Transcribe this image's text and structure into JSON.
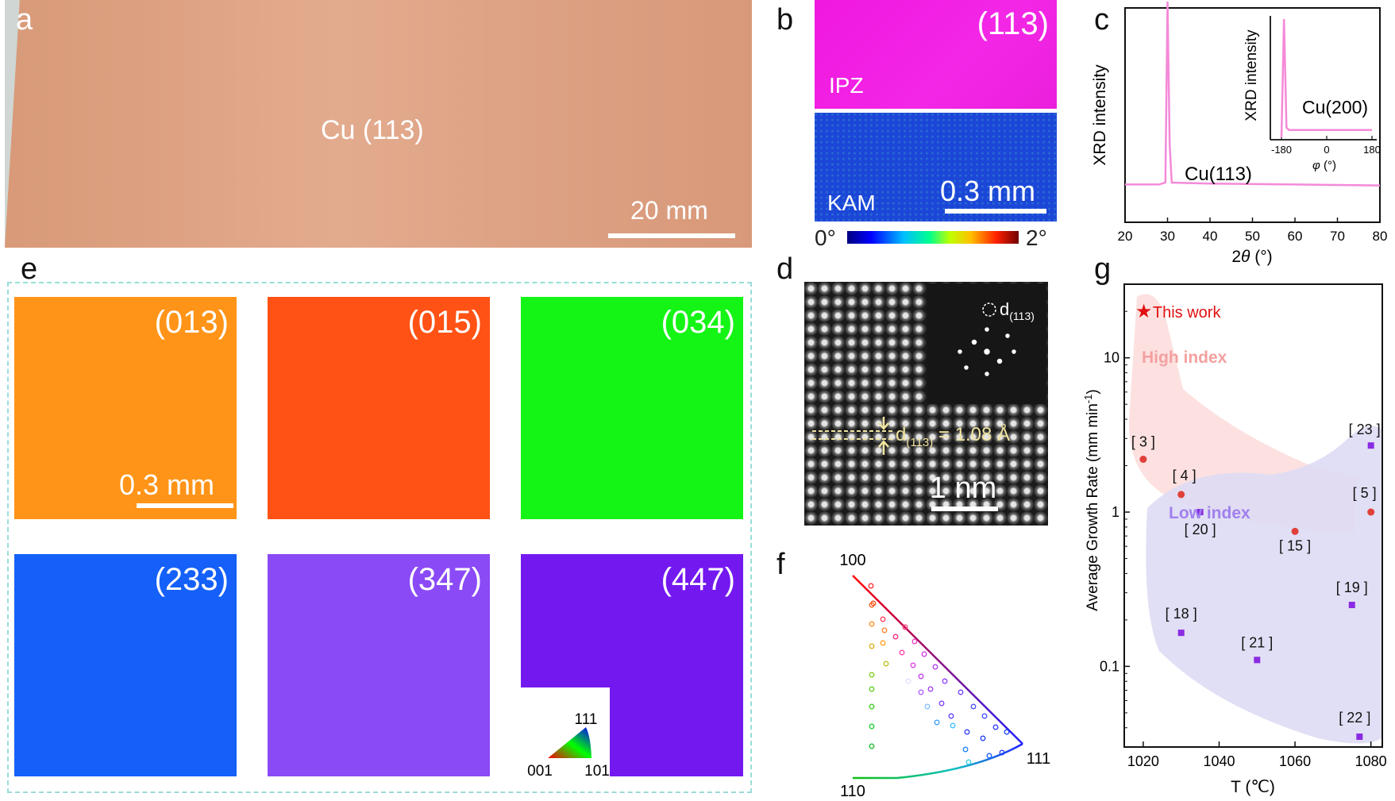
{
  "panel_labels": {
    "a": "a",
    "b": "b",
    "c": "c",
    "d": "d",
    "e": "e",
    "f": "f",
    "g": "g"
  },
  "panel_a": {
    "label": "Cu (113)",
    "scale": "20 mm"
  },
  "panel_b": {
    "ipz_hkl": "(113)",
    "ipz_label": "IPZ",
    "kam_label": "KAM",
    "scale": "0.3 mm",
    "cbar_min": "0°",
    "cbar_max": "2°"
  },
  "panel_c": {
    "ylabel": "XRD intensity",
    "xlabel_pre": "2",
    "xlabel_sym": "θ",
    "xlabel_post": " (°)",
    "xticks": [
      "20",
      "30",
      "40",
      "50",
      "60",
      "70",
      "80"
    ],
    "peak_label": "Cu(113)",
    "inset": {
      "ylabel": "XRD intensity",
      "xticks": [
        "-180",
        "0",
        "180"
      ],
      "xlabel_sym": "φ",
      "xlabel_post": " (°)",
      "label": "Cu(200)"
    }
  },
  "panel_d": {
    "fft_label_main": "d",
    "fft_label_sub": "(113)",
    "d_label_main": "d",
    "d_label_sub": "(113)",
    "d_label_post": " = 1.08 Å",
    "scale": "1 nm"
  },
  "panel_e": {
    "scale": "0.3 mm",
    "samples": [
      {
        "hkl": "(013)",
        "color": "#ff9418"
      },
      {
        "hkl": "(015)",
        "color": "#ff5214"
      },
      {
        "hkl": "(034)",
        "color": "#14f516"
      },
      {
        "hkl": "(233)",
        "color": "#1460f8"
      },
      {
        "hkl": "(347)",
        "color": "#8a4af6"
      },
      {
        "hkl": "(447)",
        "color": "#7418f0"
      }
    ],
    "ipf_key": {
      "top": "111",
      "left": "001",
      "right": "101"
    }
  },
  "panel_f": {
    "corner_100": "100",
    "corner_110": "110",
    "corner_111": "111"
  },
  "panel_g": {
    "ylabel_pre": "Average Growth Rate (mm min",
    "ylabel_sup": "-1",
    "ylabel_post": ")",
    "xlabel": "T (℃)",
    "xticks": [
      "1020",
      "1040",
      "1060",
      "1080"
    ],
    "yticks": [
      "0.1",
      "1",
      "10"
    ],
    "legend": "This work",
    "region_high": "High index",
    "region_low": "Low index"
  },
  "chart_data": [
    {
      "type": "line",
      "xlabel": "2θ (°)",
      "ylabel": "XRD intensity",
      "xlim": [
        20,
        80
      ],
      "series": [
        {
          "x": [
            20,
            28,
            29.5,
            30,
            30.5,
            31,
            40,
            60,
            80
          ],
          "y": [
            0.04,
            0.04,
            0.05,
            1.0,
            0.25,
            0.05,
            0.045,
            0.04,
            0.035
          ]
        }
      ],
      "annotations": [
        "Cu(113)"
      ],
      "inset": {
        "xlabel": "φ (°)",
        "ylabel": "XRD intensity",
        "xlim": [
          -180,
          180
        ],
        "series": [
          {
            "x": [
              -180,
              -170,
              -160,
              -150,
              0,
              180
            ],
            "y": [
              0.02,
              1.0,
              0.1,
              0.08,
              0.08,
              0.08
            ]
          }
        ],
        "annotations": [
          "Cu(200)"
        ]
      }
    },
    {
      "type": "scatter",
      "xlabel": "T (℃)",
      "ylabel": "Average Growth Rate (mm min-1)",
      "xlim": [
        1015,
        1083
      ],
      "ylim": [
        0.03,
        30
      ],
      "yscale": "log",
      "legend": [
        "This work"
      ],
      "annotations": [
        "High index",
        "Low index"
      ],
      "series": [
        {
          "name": "This work",
          "marker": "star",
          "color": "#e01010",
          "points": [
            {
              "x": 1020,
              "y": 20,
              "label": ""
            }
          ]
        },
        {
          "name": "High index",
          "marker": "circle",
          "color": "#e0403a",
          "points": [
            {
              "x": 1020,
              "y": 2.2,
              "label": "[ 3 ]"
            },
            {
              "x": 1030,
              "y": 1.3,
              "label": "[ 4 ]"
            },
            {
              "x": 1060,
              "y": 0.75,
              "label": "[ 15 ]"
            },
            {
              "x": 1080,
              "y": 1.0,
              "label": "[ 5 ]"
            }
          ]
        },
        {
          "name": "Low index",
          "marker": "square",
          "color": "#8a2be2",
          "points": [
            {
              "x": 1035,
              "y": 1.0,
              "label": "[ 20 ]"
            },
            {
              "x": 1030,
              "y": 0.165,
              "label": "[ 18 ]"
            },
            {
              "x": 1050,
              "y": 0.11,
              "label": "[ 21 ]"
            },
            {
              "x": 1075,
              "y": 0.25,
              "label": "[ 19 ]"
            },
            {
              "x": 1080,
              "y": 2.7,
              "label": "[ 23 ]"
            },
            {
              "x": 1077,
              "y": 0.035,
              "label": "[ 22 ]"
            }
          ]
        }
      ]
    }
  ]
}
